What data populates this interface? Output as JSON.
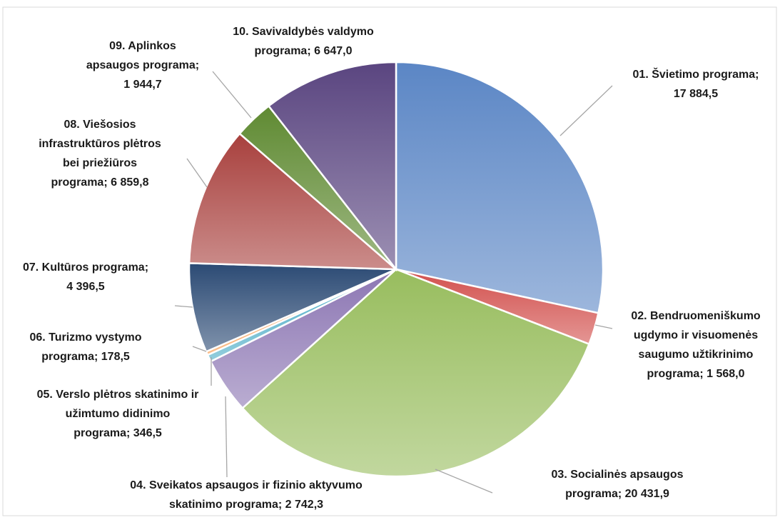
{
  "chart_data": {
    "type": "pie",
    "categories": [
      "01. Švietimo programa;",
      "02. Bendruomeniškumo ugdymo ir visuomenės saugumo užtikrinimo programa;",
      "03. Socialinės apsaugos programa;",
      "04. Sveikatos apsaugos ir fizinio aktyvumo skatinimo programa;",
      "05. Verslo plėtros skatinimo ir užimtumo didinimo programa;",
      "06. Turizmo vystymo programa;",
      "07. Kultūros programa;",
      "08. Viešosios infrastruktūros plėtros bei priežiūros programa;",
      "09. Aplinkos apsaugos programa;",
      "10. Savivaldybės valdymo programa;"
    ],
    "values": [
      17884.5,
      1568.0,
      20431.9,
      2742.3,
      346.5,
      178.5,
      4396.5,
      6859.8,
      1944.7,
      6647.0
    ],
    "value_labels": [
      "17 884,5",
      "1 568,0",
      "20 431,9",
      "2 742,3",
      "346,5",
      "178,5",
      "4 396,5",
      "6 859,8",
      "1 944,7",
      "6 647,0"
    ],
    "colors": [
      "#5b86c5",
      "#d2504d",
      "#98bd5e",
      "#8c76b3",
      "#4bacc6",
      "#f79646",
      "#2b4a74",
      "#a8403d",
      "#5f8a32",
      "#5a4580"
    ]
  }
}
